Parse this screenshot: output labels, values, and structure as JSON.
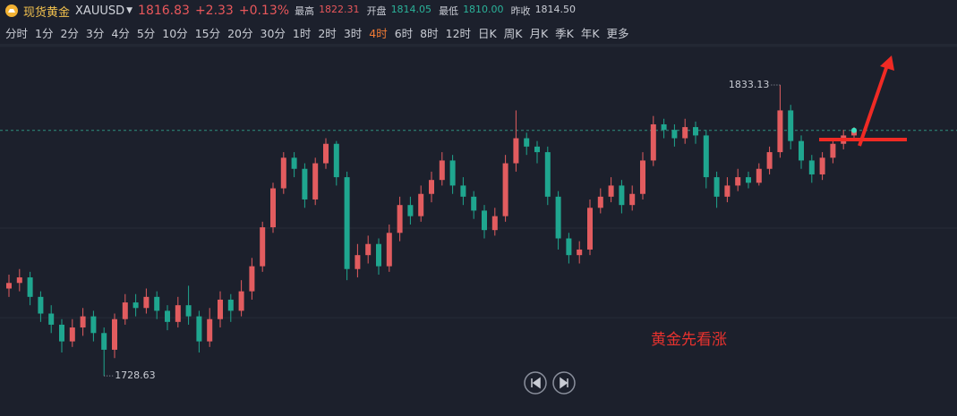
{
  "header": {
    "name": "现货黄金",
    "symbol": "XAUUSD",
    "price": 1816.83,
    "change": {
      "value": 2.33,
      "label": "+2.33"
    },
    "change_pct": {
      "value": 0.13,
      "label": "+0.13%"
    },
    "stats": [
      {
        "name": "最高",
        "value": 1822.31,
        "color": "#e8575b"
      },
      {
        "name": "开盘",
        "value": 1814.05,
        "color": "#2bb39a"
      },
      {
        "name": "最低",
        "value": 1810,
        "value_label": "1810.00",
        "color": "#2bb39a"
      },
      {
        "name": "昨收",
        "value": 1814.5,
        "value_label": "1814.50",
        "color": "#c9ccd4"
      }
    ]
  },
  "tabs": [
    "分时",
    "1分",
    "2分",
    "3分",
    "4分",
    "5分",
    "10分",
    "15分",
    "20分",
    "30分",
    "1时",
    "2时",
    "3时",
    "4时",
    "6时",
    "8时",
    "12时",
    "日K",
    "周K",
    "月K",
    "季K",
    "年K",
    "更多"
  ],
  "active_tab": "4时",
  "chart_data": {
    "type": "candlestick",
    "ylim": [
      1715.8,
      1847.6
    ],
    "ygrid": [
      1847,
      1781.7,
      1749.5
    ],
    "up_color": "#e25c5f",
    "down_color": "#1fa68f",
    "price": 1816.83,
    "max_label": 1833.13,
    "min_label": 1728.63,
    "note": "黄金先看涨",
    "open": [
      1760,
      1762,
      1764,
      1757,
      1751,
      1747,
      1741,
      1746,
      1750,
      1744,
      1738,
      1749,
      1755,
      1753,
      1757,
      1752,
      1748,
      1754,
      1750,
      1741,
      1749,
      1756,
      1752,
      1759,
      1768,
      1782,
      1796,
      1807,
      1803,
      1792,
      1805,
      1812,
      1800,
      1767,
      1772,
      1776,
      1768,
      1780,
      1790,
      1786,
      1794,
      1799,
      1806,
      1797,
      1793,
      1788,
      1781,
      1786,
      1805,
      1814,
      1811,
      1809,
      1793,
      1778,
      1772,
      1774,
      1789,
      1793,
      1797,
      1790,
      1794,
      1806,
      1819,
      1817,
      1814,
      1818,
      1815,
      1800,
      1793,
      1797,
      1800,
      1798,
      1803,
      1809,
      1824,
      1813,
      1806,
      1801,
      1807,
      1812,
      1815
    ],
    "high": [
      1765,
      1767,
      1766,
      1759,
      1754,
      1749,
      1749,
      1753,
      1752,
      1746,
      1751,
      1758,
      1758,
      1760,
      1759,
      1754,
      1757,
      1761,
      1752,
      1753,
      1759,
      1758,
      1763,
      1771,
      1784,
      1798,
      1809,
      1809,
      1805,
      1807,
      1814,
      1813,
      1802,
      1776,
      1779,
      1778,
      1783,
      1793,
      1793,
      1797,
      1802,
      1809,
      1808,
      1800,
      1795,
      1790,
      1789,
      1808,
      1824,
      1816,
      1813,
      1811,
      1795,
      1780,
      1777,
      1792,
      1796,
      1800,
      1799,
      1797,
      1809,
      1822,
      1821,
      1819,
      1821,
      1820,
      1817,
      1802,
      1800,
      1803,
      1802,
      1805,
      1811,
      1833.13,
      1826,
      1815,
      1808,
      1809,
      1814,
      1817,
      1818
    ],
    "low": [
      1757,
      1759,
      1754,
      1748,
      1744,
      1737,
      1739,
      1743,
      1741,
      1728.63,
      1735,
      1747,
      1750,
      1751,
      1749,
      1745,
      1746,
      1747,
      1737,
      1739,
      1746,
      1748,
      1750,
      1756,
      1766,
      1780,
      1794,
      1800,
      1789,
      1790,
      1803,
      1797,
      1763,
      1764,
      1769,
      1765,
      1766,
      1777,
      1783,
      1784,
      1791,
      1797,
      1794,
      1790,
      1785,
      1778,
      1779,
      1784,
      1802,
      1808,
      1805,
      1790,
      1774,
      1769,
      1769,
      1772,
      1787,
      1791,
      1787,
      1788,
      1792,
      1804,
      1814,
      1811,
      1812,
      1812,
      1796,
      1789,
      1791,
      1795,
      1796,
      1797,
      1801,
      1807,
      1810,
      1803,
      1798,
      1799,
      1805,
      1810,
      1813
    ],
    "close": [
      1762,
      1764,
      1757,
      1751,
      1747,
      1741,
      1746,
      1750,
      1744,
      1738,
      1749,
      1755,
      1753,
      1757,
      1752,
      1748,
      1754,
      1750,
      1741,
      1749,
      1756,
      1752,
      1759,
      1768,
      1782,
      1796,
      1807,
      1803,
      1792,
      1805,
      1812,
      1800,
      1767,
      1772,
      1776,
      1768,
      1780,
      1790,
      1786,
      1794,
      1799,
      1806,
      1797,
      1793,
      1788,
      1781,
      1786,
      1805,
      1814,
      1811,
      1809,
      1793,
      1778,
      1772,
      1774,
      1789,
      1793,
      1797,
      1790,
      1794,
      1806,
      1819,
      1817,
      1814,
      1818,
      1815,
      1800,
      1793,
      1797,
      1800,
      1798,
      1803,
      1809,
      1824,
      1813,
      1806,
      1801,
      1807,
      1812,
      1815,
      1816.83
    ]
  }
}
